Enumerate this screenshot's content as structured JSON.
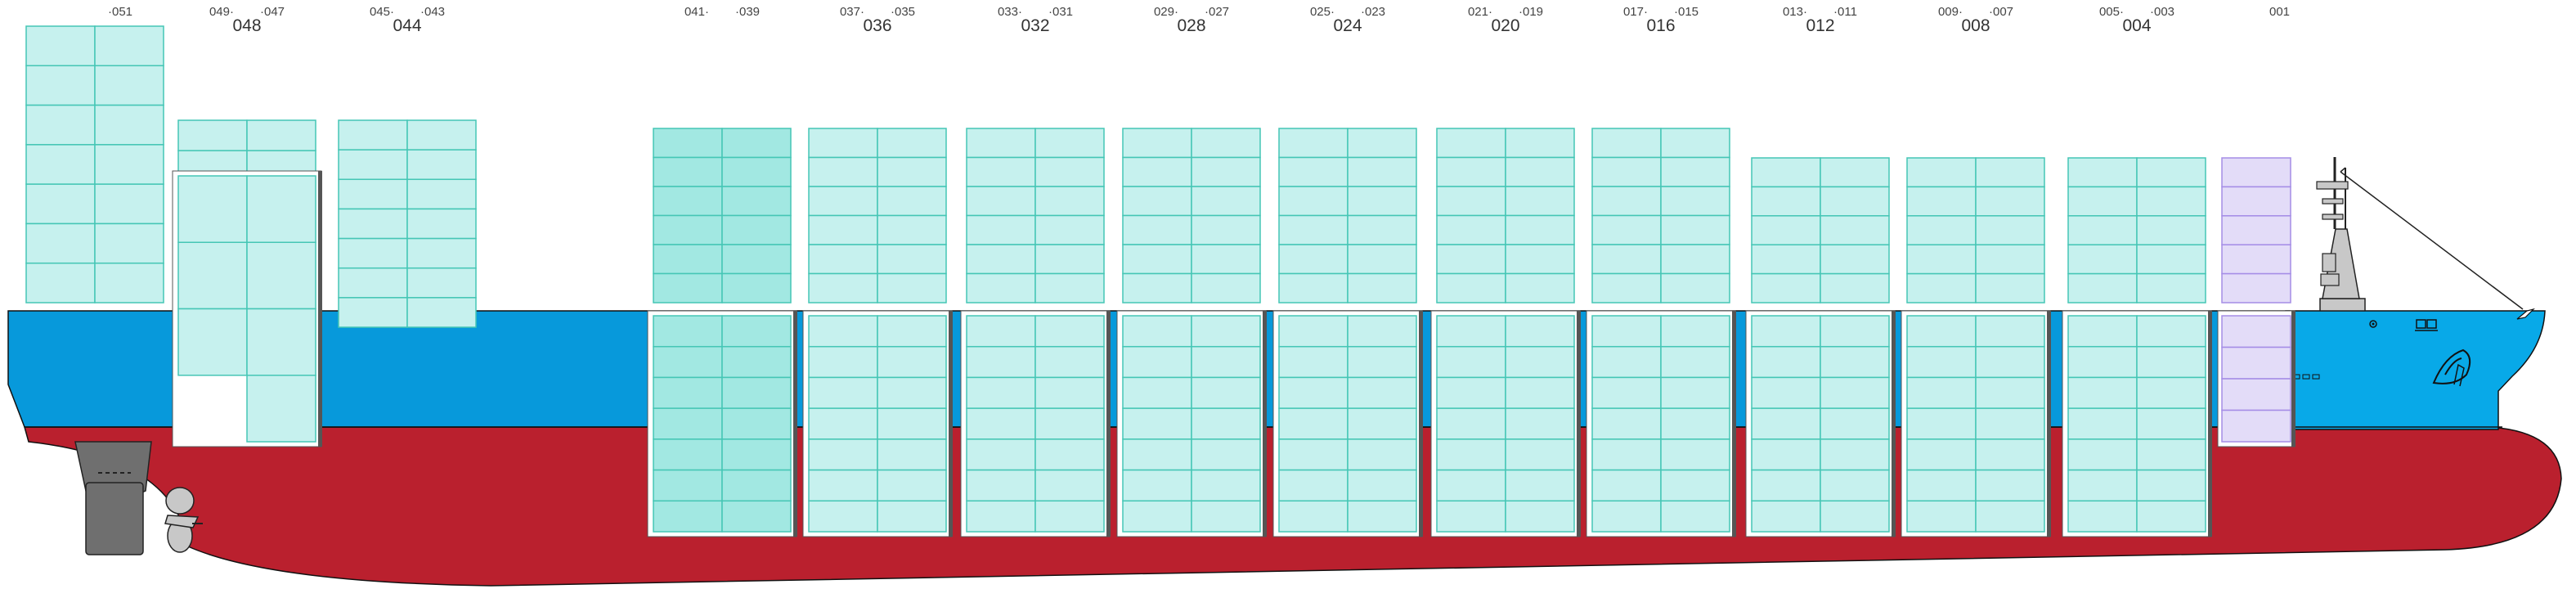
{
  "colors": {
    "hull_blue": "#0799db",
    "hull_blue_bow": "#08a9e8",
    "hull_red": "#ba202e",
    "slot_fill": "#c6f1ee",
    "slot_fill_selected": "#a2e8e2",
    "slot_stroke": "#45c6b5",
    "slot_fill_reefer": "#e3dcf8",
    "slot_stroke_reefer": "#a58de6",
    "hatch_frame": "#ffffff",
    "superstructure": "#c8c8c8"
  },
  "bays": [
    {
      "id": "bay-052",
      "main": "",
      "left": "",
      "right": "051",
      "selected": false,
      "reefer": false
    },
    {
      "id": "bay-048",
      "main": "048",
      "left": "049",
      "right": "047",
      "selected": false,
      "reefer": false
    },
    {
      "id": "bay-044",
      "main": "044",
      "left": "045",
      "right": "043",
      "selected": false,
      "reefer": false
    },
    {
      "id": "bay-040",
      "main": "",
      "left": "041",
      "right": "039",
      "selected": true,
      "reefer": false
    },
    {
      "id": "bay-036",
      "main": "036",
      "left": "037",
      "right": "035",
      "selected": false,
      "reefer": false
    },
    {
      "id": "bay-032",
      "main": "032",
      "left": "033",
      "right": "031",
      "selected": false,
      "reefer": false
    },
    {
      "id": "bay-028",
      "main": "028",
      "left": "029",
      "right": "027",
      "selected": false,
      "reefer": false
    },
    {
      "id": "bay-024",
      "main": "024",
      "left": "025",
      "right": "023",
      "selected": false,
      "reefer": false
    },
    {
      "id": "bay-020",
      "main": "020",
      "left": "021",
      "right": "019",
      "selected": false,
      "reefer": false
    },
    {
      "id": "bay-016",
      "main": "016",
      "left": "017",
      "right": "015",
      "selected": false,
      "reefer": false
    },
    {
      "id": "bay-012",
      "main": "012",
      "left": "013",
      "right": "011",
      "selected": false,
      "reefer": false
    },
    {
      "id": "bay-008",
      "main": "008",
      "left": "009",
      "right": "007",
      "selected": false,
      "reefer": false
    },
    {
      "id": "bay-004",
      "main": "004",
      "left": "005",
      "right": "003",
      "selected": false,
      "reefer": false
    },
    {
      "id": "bay-001",
      "main": "",
      "left": "",
      "right": "001",
      "selected": false,
      "reefer": true
    }
  ]
}
